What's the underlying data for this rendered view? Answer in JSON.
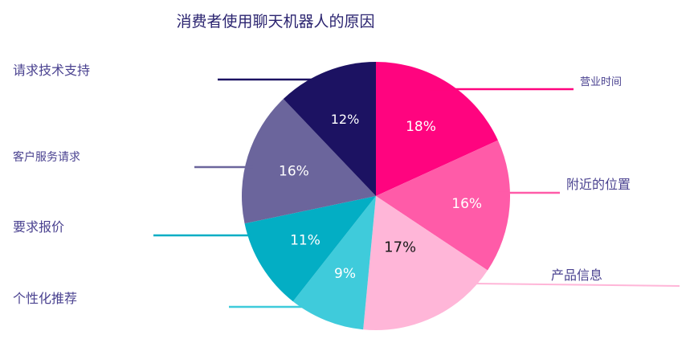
{
  "chart_data": {
    "type": "pie",
    "title": "消费者使用聊天机器人的原因",
    "unit": "%",
    "slices": [
      {
        "label": "营业时间",
        "value": 18,
        "color": "#ff047f",
        "text_color": "#ffffff"
      },
      {
        "label": "附近的位置",
        "value": 16,
        "color": "#ff5ba8",
        "text_color": "#ffffff"
      },
      {
        "label": "产品信息",
        "value": 17,
        "color": "#ffb6d8",
        "text_color": "#1a1a1a"
      },
      {
        "label": "个性化推荐",
        "value": 9,
        "color": "#3fcbdb",
        "text_color": "#ffffff"
      },
      {
        "label": "要求报价",
        "value": 11,
        "color": "#03aec4",
        "text_color": "#ffffff"
      },
      {
        "label": "客户服务请求",
        "value": 16,
        "color": "#6b659c",
        "text_color": "#ffffff"
      },
      {
        "label": "请求技术支持",
        "value": 12,
        "color": "#1c1262",
        "text_color": "#ffffff"
      }
    ],
    "legend": "callout-lines"
  }
}
